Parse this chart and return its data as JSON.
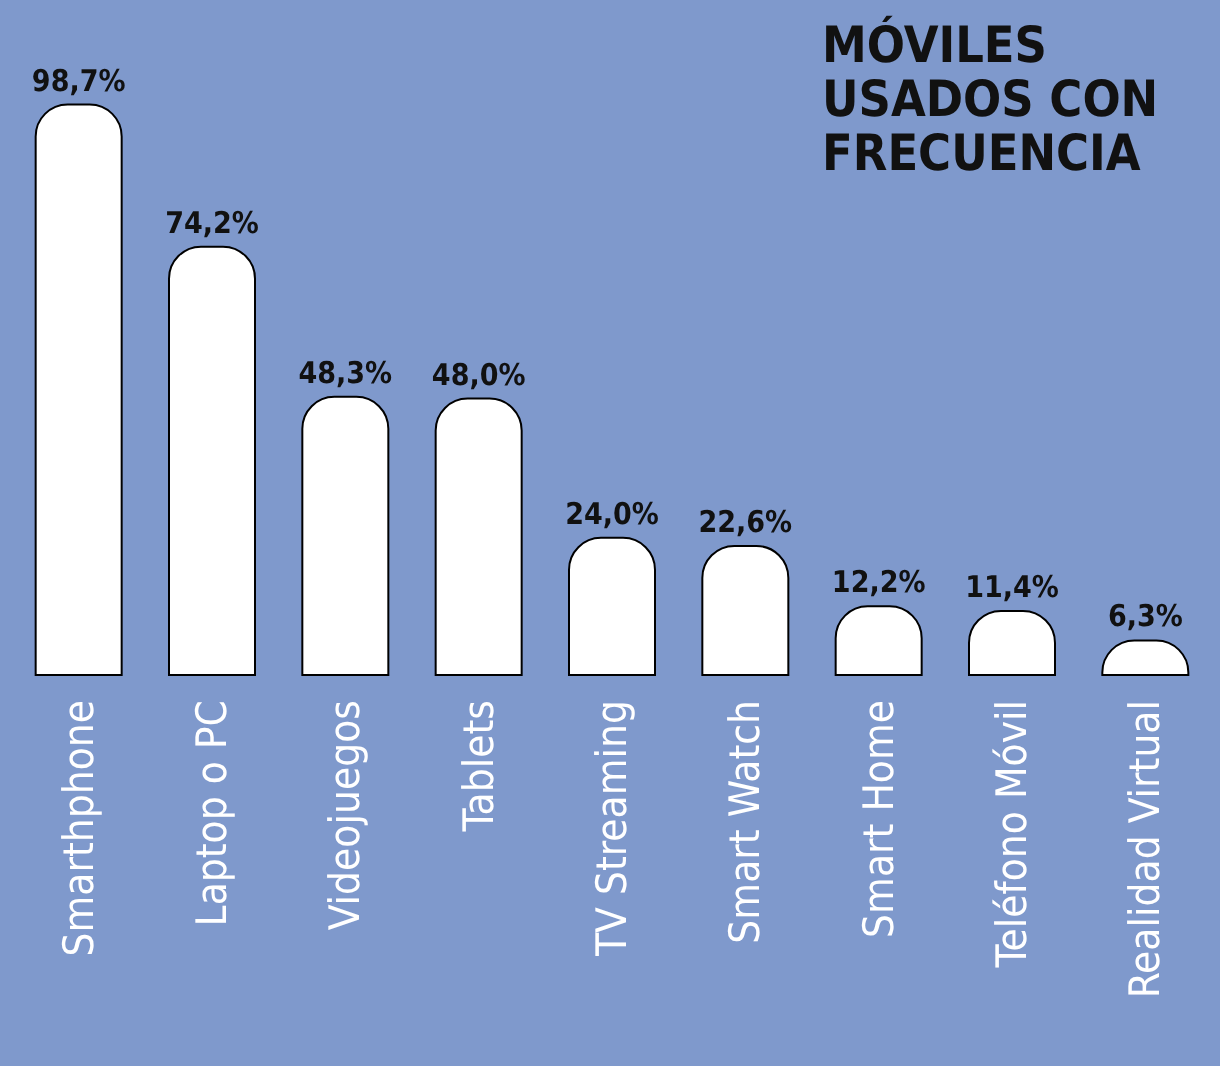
{
  "chart_data": {
    "type": "bar",
    "title": "MÓVILES USADOS CON FRECUENCIA",
    "categories": [
      "Smarthphone",
      "Laptop o PC",
      "Videojuegos",
      "Tablets",
      "TV Streaming",
      "Smart Watch",
      "Smart Home",
      "Teléfono Móvil",
      "Realidad Virtual"
    ],
    "values": [
      98.7,
      74.2,
      48.3,
      48.0,
      24.0,
      22.6,
      12.2,
      11.4,
      6.3
    ],
    "value_labels": [
      "98,7%",
      "74,2%",
      "48,3%",
      "48,0%",
      "24,0%",
      "22,6%",
      "12,2%",
      "11,4%",
      "6,3%"
    ],
    "color": "#ffffff"
  }
}
